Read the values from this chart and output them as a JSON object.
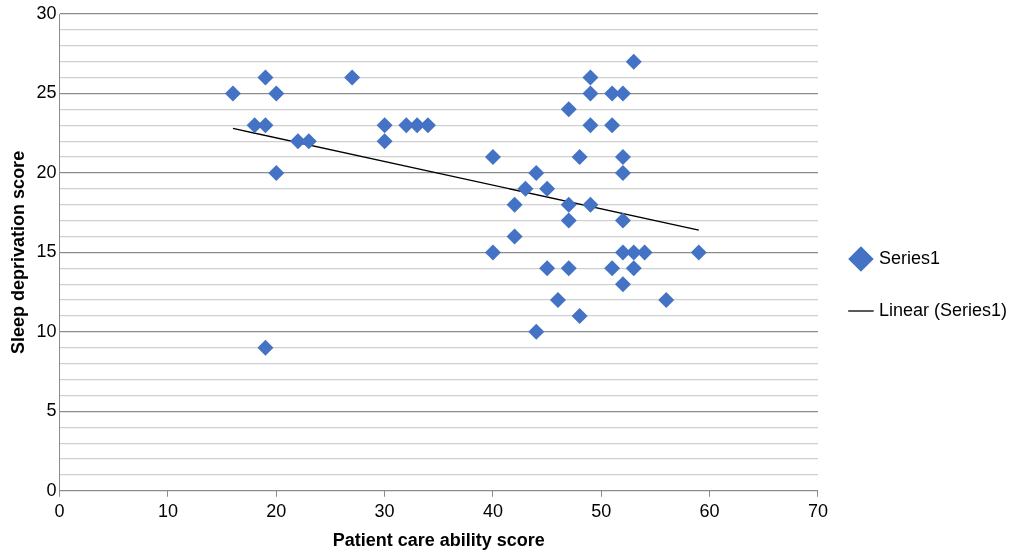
{
  "chart_data": {
    "type": "scatter",
    "xlabel": "Patient care ability score",
    "ylabel": "Sleep deprivation score",
    "series": [
      {
        "name": "Series1",
        "color": "#4472c4",
        "marker": "diamond",
        "x": [
          16,
          18,
          19,
          19,
          20,
          20,
          19,
          22,
          23,
          27,
          30,
          30,
          32,
          33,
          34,
          40,
          40,
          42,
          42,
          43,
          44,
          44,
          45,
          45,
          46,
          47,
          47,
          47,
          47,
          48,
          48,
          49,
          49,
          49,
          49,
          51,
          51,
          51,
          52,
          52,
          52,
          52,
          52,
          52,
          53,
          53,
          53,
          54,
          56,
          59
        ],
        "values": [
          25,
          23,
          26,
          23,
          25,
          20,
          9,
          22,
          22,
          26,
          23,
          22,
          23,
          23,
          23,
          21,
          15,
          18,
          16,
          19,
          20,
          10,
          19,
          14,
          12,
          24,
          18,
          17,
          14,
          21,
          11,
          26,
          25,
          23,
          18,
          25,
          23,
          14,
          25,
          21,
          20,
          17,
          15,
          13,
          27,
          15,
          14,
          15,
          12,
          15
        ]
      },
      {
        "name": "Linear (Series1)",
        "type": "line",
        "color": "#000000",
        "marker": "none",
        "x": [
          16,
          59
        ],
        "values": [
          22.8,
          16.4
        ]
      }
    ],
    "xlim": [
      0,
      70
    ],
    "xticks": [
      0,
      10,
      20,
      30,
      40,
      50,
      60,
      70
    ],
    "ylim": [
      0,
      30
    ],
    "yticks": [
      0,
      {
        "value": 1,
        "label": null
      },
      {
        "value": 2,
        "label": null
      },
      {
        "value": 3,
        "label": null
      },
      {
        "value": 4,
        "label": null
      },
      5,
      {
        "value": 6,
        "label": null
      },
      {
        "value": 7,
        "label": null
      },
      {
        "value": 8,
        "label": null
      },
      {
        "value": 9,
        "label": null
      },
      10,
      {
        "value": 11,
        "label": null
      },
      {
        "value": 12,
        "label": null
      },
      {
        "value": 13,
        "label": null
      },
      {
        "value": 14,
        "label": null
      },
      15,
      {
        "value": 16,
        "label": null
      },
      {
        "value": 17,
        "label": null
      },
      {
        "value": 18,
        "label": null
      },
      {
        "value": 19,
        "label": null
      },
      20,
      {
        "value": 21,
        "label": null
      },
      {
        "value": 22,
        "label": null
      },
      {
        "value": 23,
        "label": null
      },
      {
        "value": 24,
        "label": null
      },
      25,
      {
        "value": 26,
        "label": null
      },
      {
        "value": 27,
        "label": null
      },
      {
        "value": 28,
        "label": null
      },
      {
        "value": 29,
        "label": null
      },
      30
    ],
    "grid": "y",
    "legend": "right"
  }
}
